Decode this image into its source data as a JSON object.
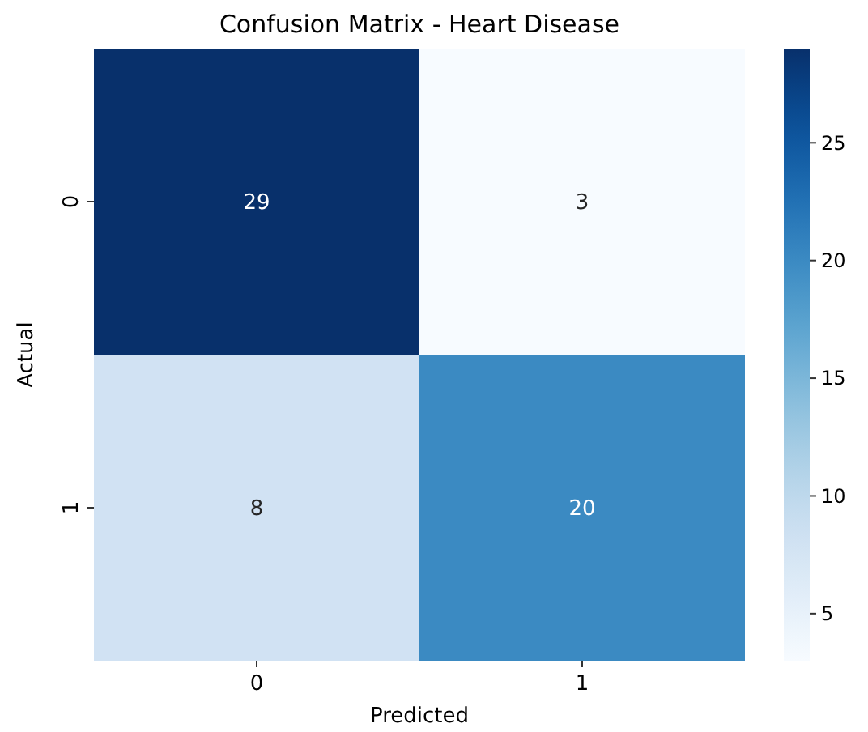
{
  "chart_data": {
    "type": "heatmap",
    "title": "Confusion Matrix - Heart Disease",
    "xlabel": "Predicted",
    "ylabel": "Actual",
    "categories": [
      "0",
      "1"
    ],
    "y_categories": [
      "0",
      "1"
    ],
    "cells": [
      [
        29,
        3
      ],
      [
        8,
        20
      ]
    ],
    "data_labels": true,
    "clim": [
      3,
      29
    ],
    "cticks": [
      5,
      10,
      15,
      20,
      25
    ]
  }
}
